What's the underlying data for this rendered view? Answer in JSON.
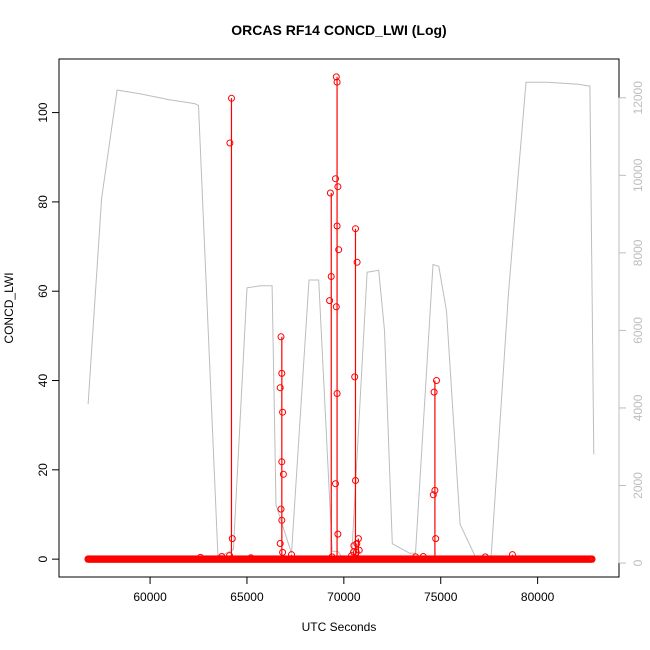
{
  "chart_data": {
    "type": "line",
    "title": "ORCAS RF14 CONCD_LWI (Log)",
    "xlabel": "UTC Seconds",
    "ylabel": "CONCD_LWI",
    "xlim": [
      55300,
      84200
    ],
    "ylim": [
      -4,
      112
    ],
    "y2lim": [
      -360,
      13000
    ],
    "x_ticks": [
      60000,
      65000,
      70000,
      75000,
      80000
    ],
    "y_ticks": [
      0,
      20,
      40,
      60,
      80,
      100
    ],
    "y2_ticks": [
      0,
      2000,
      4000,
      6000,
      8000,
      10000,
      12000
    ],
    "grid": false,
    "legend": "none",
    "colors": {
      "concd": "#ff0000",
      "altitude": "#bdbdbd",
      "axis": "#000000",
      "secondary_axis": "#bdbdbd"
    },
    "baseline": {
      "x_start": 56800,
      "x_end": 82800,
      "value": 0
    },
    "concd_spikes": [
      {
        "x": 64200,
        "values": [
          0,
          4.6,
          93.2,
          103.2
        ]
      },
      {
        "x": 66800,
        "values": [
          0,
          1.5,
          3.5,
          8.7,
          11.2,
          19.0,
          21.8,
          32.9,
          38.4,
          41.6,
          49.8
        ]
      },
      {
        "x": 69350,
        "values": [
          0,
          0.5,
          57.9,
          63.3,
          82.0
        ]
      },
      {
        "x": 69650,
        "values": [
          0,
          5.6,
          16.9,
          37.1,
          56.5,
          69.3,
          74.6,
          83.4,
          85.2,
          106.8,
          108.0
        ]
      },
      {
        "x": 70600,
        "values": [
          0,
          1.5,
          3.0,
          17.6,
          40.8,
          66.5,
          74.0
        ]
      },
      {
        "x": 70750,
        "values": [
          0,
          2.0,
          3.5,
          4.6
        ]
      },
      {
        "x": 74700,
        "values": [
          0,
          4.6,
          14.4,
          15.4,
          37.4,
          40.0
        ]
      }
    ],
    "concd_small_points": [
      {
        "x": 62600,
        "y": 0.4
      },
      {
        "x": 63700,
        "y": 0.6
      },
      {
        "x": 64100,
        "y": 0.8
      },
      {
        "x": 65200,
        "y": 0.3
      },
      {
        "x": 67300,
        "y": 1.0
      },
      {
        "x": 70400,
        "y": 0.8
      },
      {
        "x": 70500,
        "y": 1.6
      },
      {
        "x": 73700,
        "y": 0.5
      },
      {
        "x": 74100,
        "y": 0.6
      },
      {
        "x": 77300,
        "y": 0.5
      },
      {
        "x": 78700,
        "y": 1.0
      }
    ],
    "altitude_series": {
      "x": [
        56800,
        57500,
        58300,
        59500,
        61000,
        62300,
        62500,
        63500,
        63700,
        64300,
        65000,
        65700,
        66300,
        66500,
        67300,
        68200,
        68700,
        69400,
        69700,
        69900,
        70400,
        71200,
        71800,
        72100,
        72500,
        73400,
        73700,
        74600,
        74900,
        75300,
        76000,
        76800,
        77300,
        77600,
        78500,
        79000,
        79400,
        80500,
        82100,
        82700,
        82900
      ],
      "y": [
        4100,
        9400,
        12200,
        12100,
        11950,
        11850,
        11800,
        200,
        200,
        350,
        7100,
        7150,
        7150,
        1500,
        250,
        7300,
        7300,
        300,
        300,
        150,
        150,
        7500,
        7550,
        6000,
        500,
        250,
        250,
        7700,
        7650,
        6500,
        1000,
        150,
        150,
        150,
        7000,
        10000,
        12400,
        12400,
        12350,
        12300,
        2800
      ]
    }
  }
}
